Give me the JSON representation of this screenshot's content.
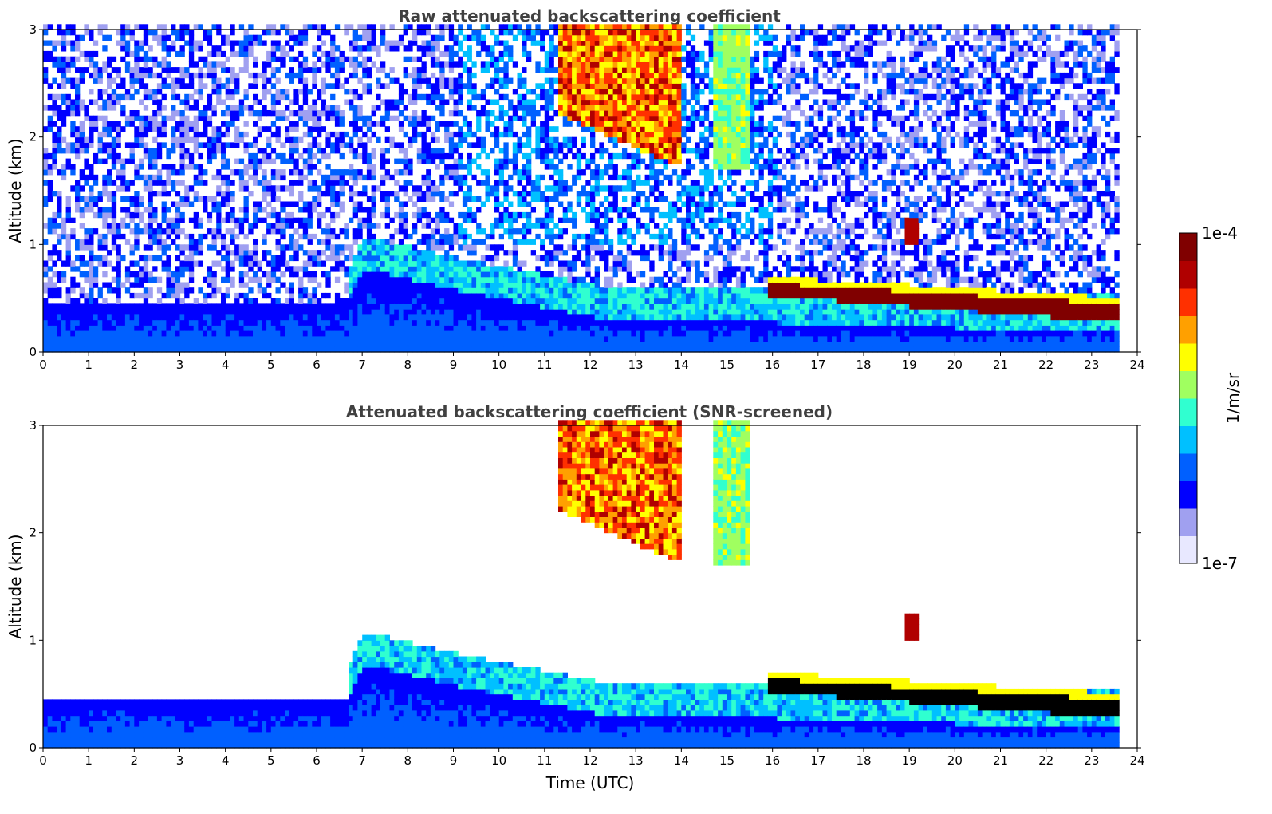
{
  "chart_data": [
    {
      "type": "heatmap",
      "title": "Raw attenuated backscattering coefficient",
      "xlabel": "",
      "ylabel": "Altitude (km)",
      "xlim": [
        0,
        24
      ],
      "ylim": [
        0,
        3
      ],
      "xticks": [
        "0",
        "1",
        "2",
        "3",
        "4",
        "5",
        "6",
        "7",
        "8",
        "9",
        "10",
        "11",
        "12",
        "13",
        "14",
        "15",
        "16",
        "17",
        "18",
        "19",
        "20",
        "21",
        "22",
        "23",
        "24"
      ],
      "yticks": [
        "0",
        "1",
        "2",
        "3"
      ],
      "data_end_time": 23.6,
      "layers": [
        {
          "name": "boundary-layer",
          "t": [
            0,
            6.6,
            7,
            9,
            12,
            16,
            20,
            23.6
          ],
          "top": [
            0.4,
            0.4,
            0.75,
            0.55,
            0.3,
            0.25,
            0.2,
            0.2
          ],
          "level": 0.18
        },
        {
          "name": "cirrus",
          "t": [
            11.2,
            13.9
          ],
          "bottom": [
            2.2,
            1.7
          ],
          "top": [
            3,
            3
          ],
          "level": 0.85
        },
        {
          "name": "cirrus-light",
          "t": [
            14.6,
            15.4
          ],
          "bottom": [
            1.7,
            1.7
          ],
          "top": [
            3,
            3
          ],
          "level": 0.5
        },
        {
          "name": "stratocumulus",
          "t": [
            15.8,
            23.6
          ],
          "base": [
            0.5,
            0.25
          ],
          "top": [
            0.6,
            0.4
          ],
          "level": 0.98
        },
        {
          "name": "cloud-patch",
          "t": [
            18.8,
            19.2
          ],
          "base": [
            1.0,
            1.0
          ],
          "top": [
            1.2,
            1.2
          ],
          "level": 0.9
        }
      ]
    },
    {
      "type": "heatmap",
      "title": "Attenuated backscattering coefficient (SNR-screened)",
      "xlabel": "Time (UTC)",
      "ylabel": "Altitude (km)",
      "xlim": [
        0,
        24
      ],
      "ylim": [
        0,
        3
      ],
      "xticks": [
        "0",
        "1",
        "2",
        "3",
        "4",
        "5",
        "6",
        "7",
        "8",
        "9",
        "10",
        "11",
        "12",
        "13",
        "14",
        "15",
        "16",
        "17",
        "18",
        "19",
        "20",
        "21",
        "22",
        "23",
        "24"
      ],
      "yticks": [
        "0",
        "1",
        "2",
        "3"
      ],
      "data_end_time": 23.6,
      "screened": true
    }
  ],
  "colorbar": {
    "label": "1/m/sr",
    "max_label": "1e-4",
    "min_label": "1e-7",
    "scale": "log",
    "range": [
      1e-07,
      0.0001
    ],
    "colors": [
      "#e8e8ff",
      "#a0a0f0",
      "#0000ff",
      "#0060ff",
      "#00c0ff",
      "#30ffd0",
      "#a0ff60",
      "#ffff00",
      "#ffa000",
      "#ff3000",
      "#b00000",
      "#800000"
    ]
  }
}
